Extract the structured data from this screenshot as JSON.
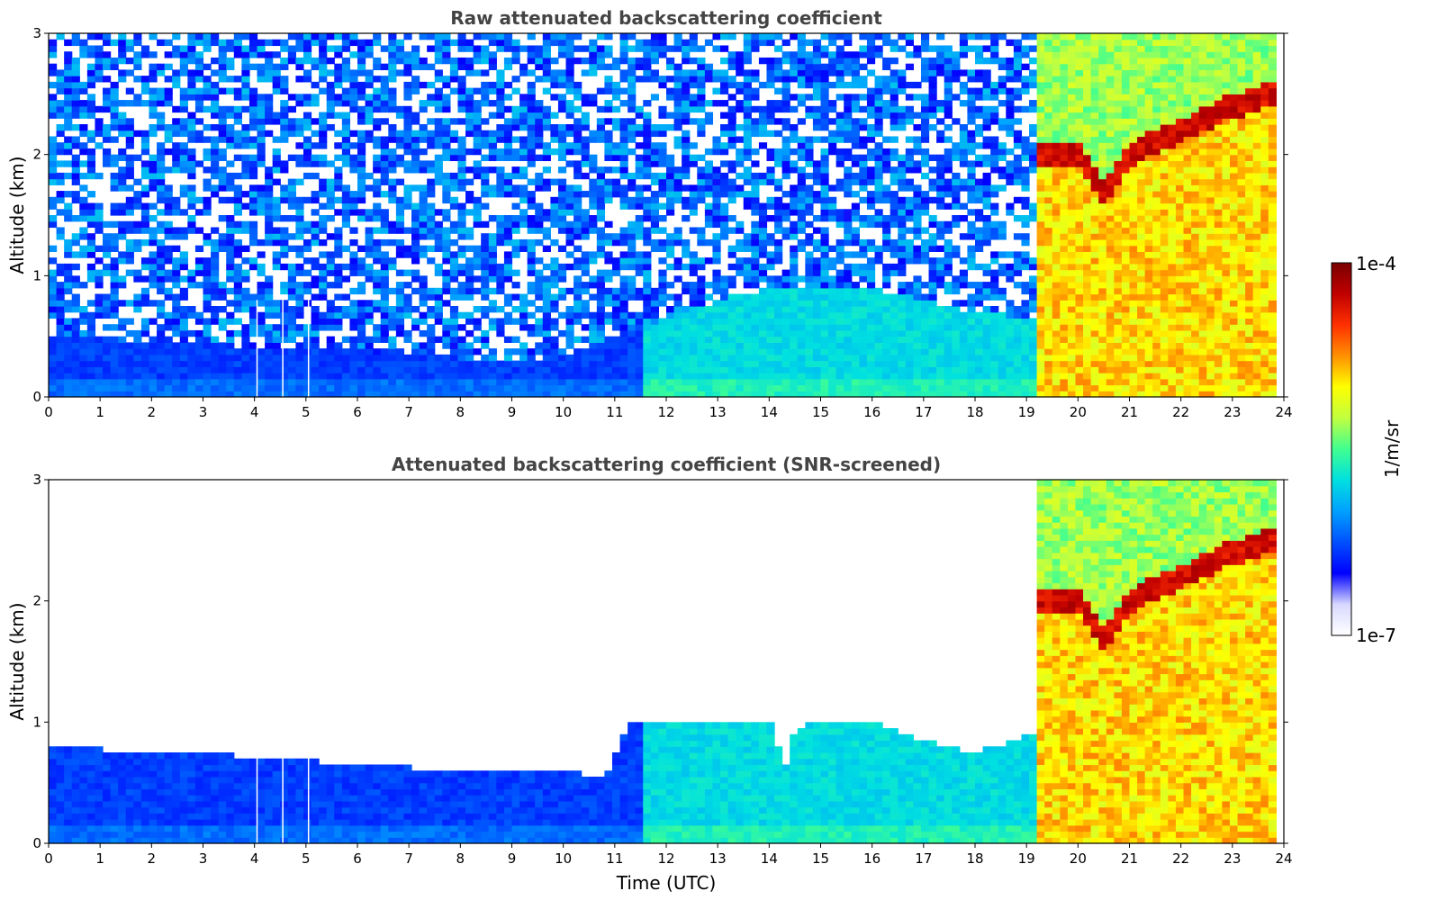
{
  "chart_data": [
    {
      "type": "heatmap",
      "title": "Raw attenuated backscattering coefficient",
      "xlabel": "",
      "ylabel": "Altitude (km)",
      "xlim": [
        0,
        24
      ],
      "ylim": [
        0,
        3
      ],
      "x_ticks": [
        "0",
        "1",
        "2",
        "3",
        "4",
        "5",
        "6",
        "7",
        "8",
        "9",
        "10",
        "11",
        "12",
        "13",
        "14",
        "15",
        "16",
        "17",
        "18",
        "19",
        "20",
        "21",
        "22",
        "23",
        "24"
      ],
      "y_ticks": [
        "0",
        "1",
        "2",
        "3"
      ],
      "screened": false,
      "features": {
        "boundary_layer_top_km": [
          [
            0,
            0.5
          ],
          [
            2,
            0.45
          ],
          [
            4,
            0.42
          ],
          [
            6,
            0.38
          ],
          [
            8,
            0.32
          ],
          [
            9,
            0.28
          ],
          [
            10,
            0.35
          ],
          [
            11,
            0.5
          ],
          [
            12,
            0.65
          ],
          [
            13,
            0.8
          ],
          [
            14,
            0.9
          ],
          [
            15,
            0.88
          ],
          [
            16,
            0.9
          ],
          [
            17,
            0.8
          ],
          [
            18,
            0.7
          ],
          [
            19.2,
            0.65
          ]
        ],
        "dense_aerosol_start_hour": 19.2,
        "layer_km": [
          [
            20,
            2.0
          ],
          [
            20.5,
            1.7
          ],
          [
            21,
            2.0
          ],
          [
            22,
            2.2
          ],
          [
            23,
            2.4
          ],
          [
            23.8,
            2.5
          ]
        ],
        "instrument_gaps_hours": [
          4.05,
          4.55,
          5.05
        ],
        "data_end_hour": 23.8
      }
    },
    {
      "type": "heatmap",
      "title": "Attenuated backscattering coefficient (SNR-screened)",
      "xlabel": "Time (UTC)",
      "ylabel": "Altitude (km)",
      "xlim": [
        0,
        24
      ],
      "ylim": [
        0,
        3
      ],
      "x_ticks": [
        "0",
        "1",
        "2",
        "3",
        "4",
        "5",
        "6",
        "7",
        "8",
        "9",
        "10",
        "11",
        "12",
        "13",
        "14",
        "15",
        "16",
        "17",
        "18",
        "19",
        "20",
        "21",
        "22",
        "23",
        "24"
      ],
      "y_ticks": [
        "0",
        "1",
        "2",
        "3"
      ],
      "screened": true,
      "features": {
        "boundary_layer_top_km": [
          [
            0,
            0.8
          ],
          [
            2,
            0.75
          ],
          [
            4,
            0.72
          ],
          [
            6,
            0.65
          ],
          [
            8,
            0.6
          ],
          [
            10,
            0.6
          ],
          [
            10.8,
            0.55
          ],
          [
            11.3,
            1.0
          ],
          [
            12,
            1.0
          ],
          [
            13,
            1.0
          ],
          [
            14,
            1.02
          ],
          [
            14.3,
            0.6
          ],
          [
            14.5,
            0.95
          ],
          [
            15,
            1.0
          ],
          [
            16,
            1.0
          ],
          [
            17,
            0.85
          ],
          [
            18,
            0.75
          ],
          [
            19.1,
            0.9
          ]
        ],
        "dense_aerosol_start_hour": 19.2,
        "layer_km": [
          [
            20,
            2.0
          ],
          [
            20.5,
            1.7
          ],
          [
            21,
            2.0
          ],
          [
            22,
            2.2
          ],
          [
            23,
            2.4
          ],
          [
            23.8,
            2.5
          ]
        ],
        "instrument_gaps_hours": [
          4.05,
          4.55,
          5.05
        ],
        "data_end_hour": 23.8
      }
    }
  ],
  "colorbar": {
    "label": "1/m/sr",
    "min_label": "1e-7",
    "max_label": "1e-4",
    "scale": "log",
    "colormap": [
      "#ffffff",
      "#d8d8ff",
      "#0000ff",
      "#0050ff",
      "#00a0ff",
      "#00e0e0",
      "#40ff90",
      "#c0ff40",
      "#ffff00",
      "#ff9000",
      "#ff3000",
      "#c00000",
      "#7a0000"
    ]
  }
}
